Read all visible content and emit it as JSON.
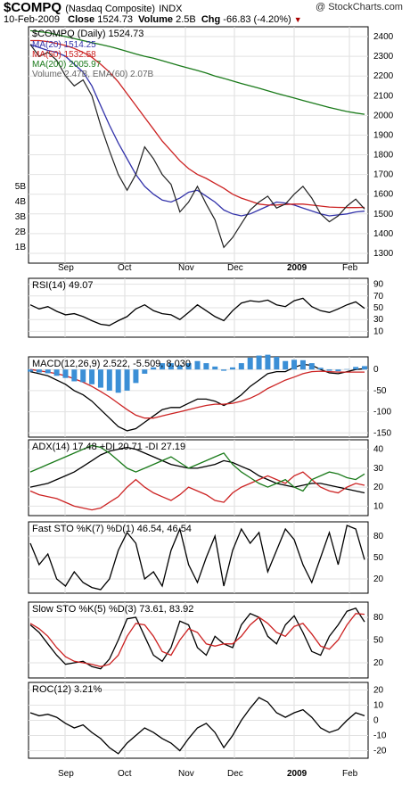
{
  "header": {
    "symbol": "$COMPQ",
    "name": "(Nasdaq Composite)",
    "exchange": "INDX",
    "date": "10-Feb-2009",
    "close_label": "Close",
    "close": "1524.73",
    "volume_label": "Volume",
    "volume": "2.5B",
    "chg_label": "Chg",
    "chg": "-66.83 (-4.20%)",
    "logo": "@ StockCharts.com"
  },
  "chart_data": [
    {
      "type": "line",
      "title": "$COMPQ (Daily) 1524.73",
      "legend": [
        "MA(20) 1514.25",
        "MA(50) 1532.58",
        "MA(200) 2005.97",
        "Volume 2.47B, EMA(60) 2.07B"
      ],
      "x_ticks": [
        "Sep",
        "Oct",
        "Nov",
        "Dec",
        "2009",
        "Feb"
      ],
      "ylim": [
        1250,
        2450
      ],
      "y_ticks": [
        1300,
        1400,
        1500,
        1600,
        1700,
        1800,
        1900,
        2000,
        2100,
        2200,
        2300,
        2400
      ],
      "volume_ticks": [
        "1B",
        "2B",
        "3B",
        "4B",
        "5B"
      ],
      "series": [
        {
          "name": "MA(20)",
          "color": "#3333aa",
          "values": [
            2360,
            2345,
            2330,
            2320,
            2300,
            2260,
            2220,
            2150,
            2050,
            1950,
            1860,
            1780,
            1700,
            1640,
            1600,
            1570,
            1560,
            1580,
            1610,
            1620,
            1590,
            1560,
            1520,
            1500,
            1490,
            1500,
            1520,
            1540,
            1560,
            1555,
            1545,
            1530,
            1515,
            1500,
            1490,
            1495,
            1500,
            1510,
            1514
          ]
        },
        {
          "name": "MA(50)",
          "color": "#cc2222",
          "values": [
            2380,
            2380,
            2375,
            2365,
            2355,
            2340,
            2320,
            2295,
            2260,
            2220,
            2170,
            2110,
            2050,
            1990,
            1930,
            1870,
            1820,
            1770,
            1730,
            1700,
            1680,
            1655,
            1630,
            1600,
            1580,
            1565,
            1550,
            1545,
            1545,
            1548,
            1550,
            1550,
            1545,
            1540,
            1535,
            1533,
            1532,
            1532,
            1533
          ]
        },
        {
          "name": "MA(200)",
          "color": "#1a7a1a",
          "values": [
            2430,
            2425,
            2420,
            2410,
            2400,
            2390,
            2380,
            2370,
            2360,
            2350,
            2338,
            2325,
            2312,
            2300,
            2290,
            2278,
            2265,
            2252,
            2240,
            2228,
            2215,
            2200,
            2188,
            2175,
            2162,
            2150,
            2138,
            2125,
            2112,
            2100,
            2088,
            2076,
            2064,
            2052,
            2040,
            2030,
            2020,
            2012,
            2006
          ]
        },
        {
          "name": "Close",
          "color": "#222222",
          "values": [
            2360,
            2300,
            2320,
            2280,
            2200,
            2150,
            2180,
            2100,
            1950,
            1820,
            1700,
            1620,
            1700,
            1840,
            1780,
            1700,
            1650,
            1510,
            1560,
            1640,
            1550,
            1470,
            1330,
            1380,
            1450,
            1520,
            1560,
            1590,
            1530,
            1550,
            1600,
            1640,
            1580,
            1500,
            1460,
            1490,
            1540,
            1575,
            1525
          ]
        }
      ]
    },
    {
      "type": "line",
      "title": "RSI(14) 49.07",
      "y_ticks": [
        10,
        30,
        50,
        70,
        90
      ],
      "ylim": [
        0,
        100
      ],
      "series": [
        {
          "name": "RSI",
          "values": [
            55,
            48,
            52,
            44,
            38,
            40,
            35,
            28,
            22,
            20,
            28,
            35,
            48,
            55,
            45,
            40,
            38,
            30,
            42,
            55,
            45,
            35,
            28,
            45,
            58,
            62,
            60,
            63,
            55,
            52,
            62,
            66,
            52,
            45,
            42,
            48,
            55,
            60,
            49
          ]
        }
      ]
    },
    {
      "type": "line",
      "title": "MACD(12,26,9) 2.522, -5.509, 8.030",
      "legend": [
        "2.522",
        "-5.509",
        "8.030"
      ],
      "y_ticks": [
        0,
        -50,
        -100,
        -150
      ],
      "ylim": [
        -160,
        30
      ],
      "series": [
        {
          "name": "MACD",
          "values": [
            -5,
            -10,
            -15,
            -25,
            -35,
            -50,
            -60,
            -75,
            -95,
            -115,
            -135,
            -145,
            -140,
            -125,
            -110,
            -95,
            -90,
            -90,
            -80,
            -70,
            -70,
            -75,
            -85,
            -75,
            -60,
            -40,
            -25,
            -10,
            -5,
            -5,
            5,
            12,
            10,
            0,
            -8,
            -10,
            -5,
            0,
            2
          ]
        },
        {
          "name": "Signal",
          "values": [
            0,
            -3,
            -6,
            -10,
            -15,
            -22,
            -30,
            -40,
            -52,
            -65,
            -80,
            -95,
            -108,
            -115,
            -115,
            -110,
            -105,
            -100,
            -95,
            -90,
            -85,
            -82,
            -82,
            -80,
            -75,
            -68,
            -58,
            -45,
            -35,
            -25,
            -18,
            -10,
            -5,
            -4,
            -5,
            -6,
            -6,
            -6,
            -6
          ]
        },
        {
          "name": "Histogram",
          "values": [
            -5,
            -7,
            -9,
            -15,
            -20,
            -28,
            -30,
            -35,
            -43,
            -50,
            -55,
            -50,
            -32,
            -10,
            5,
            15,
            15,
            10,
            15,
            20,
            15,
            7,
            -3,
            5,
            15,
            28,
            33,
            35,
            30,
            20,
            23,
            22,
            15,
            4,
            -3,
            -4,
            1,
            6,
            8
          ]
        }
      ]
    },
    {
      "type": "line",
      "title": "ADX(14) 17.48 +DI 20.71 -DI 27.19",
      "legend": [
        "ADX(14) 17.48",
        "+DI 20.71",
        "-DI 27.19"
      ],
      "y_ticks": [
        10,
        20,
        30,
        40
      ],
      "ylim": [
        5,
        45
      ],
      "series": [
        {
          "name": "ADX",
          "values": [
            20,
            21,
            22,
            24,
            26,
            28,
            31,
            34,
            37,
            39,
            40,
            41,
            40,
            38,
            36,
            34,
            32,
            31,
            30,
            30,
            31,
            32,
            34,
            33,
            31,
            29,
            26,
            24,
            22,
            21,
            20,
            21,
            22,
            22,
            21,
            20,
            19,
            18,
            17
          ]
        },
        {
          "name": "+DI",
          "values": [
            18,
            16,
            15,
            14,
            12,
            10,
            9,
            8,
            9,
            12,
            15,
            20,
            24,
            20,
            17,
            15,
            13,
            16,
            20,
            18,
            16,
            13,
            12,
            17,
            20,
            22,
            24,
            26,
            24,
            22,
            26,
            28,
            24,
            20,
            18,
            17,
            20,
            22,
            21
          ]
        },
        {
          "name": "-DI",
          "values": [
            28,
            30,
            32,
            34,
            36,
            38,
            40,
            42,
            41,
            38,
            34,
            30,
            28,
            30,
            32,
            34,
            36,
            33,
            30,
            32,
            34,
            36,
            38,
            32,
            28,
            25,
            22,
            20,
            22,
            24,
            20,
            18,
            24,
            26,
            28,
            27,
            25,
            24,
            27
          ]
        }
      ]
    },
    {
      "type": "line",
      "title": "Fast STO %K(7) %D(1) 46.54, 46.54",
      "legend": [
        "46.54",
        "46.54"
      ],
      "y_ticks": [
        20,
        50,
        80
      ],
      "ylim": [
        0,
        100
      ],
      "series": [
        {
          "name": "%K",
          "values": [
            70,
            40,
            55,
            20,
            10,
            30,
            15,
            8,
            5,
            20,
            60,
            85,
            70,
            20,
            30,
            10,
            60,
            90,
            40,
            15,
            50,
            80,
            10,
            60,
            90,
            70,
            85,
            30,
            60,
            90,
            75,
            40,
            15,
            50,
            85,
            40,
            95,
            90,
            47
          ]
        }
      ]
    },
    {
      "type": "line",
      "title": "Slow STO %K(5) %D(3) 73.61, 83.92",
      "legend": [
        "73.61",
        "83.92"
      ],
      "y_ticks": [
        20,
        50,
        80
      ],
      "ylim": [
        0,
        100
      ],
      "series": [
        {
          "name": "%K",
          "values": [
            70,
            60,
            45,
            30,
            18,
            20,
            22,
            15,
            12,
            25,
            50,
            78,
            80,
            55,
            30,
            22,
            40,
            75,
            70,
            40,
            30,
            55,
            45,
            40,
            70,
            85,
            80,
            55,
            45,
            70,
            82,
            60,
            35,
            30,
            55,
            70,
            88,
            92,
            74
          ]
        },
        {
          "name": "%D",
          "values": [
            72,
            65,
            55,
            40,
            28,
            22,
            20,
            18,
            15,
            18,
            30,
            55,
            72,
            70,
            55,
            35,
            30,
            50,
            65,
            60,
            45,
            42,
            45,
            45,
            55,
            70,
            80,
            72,
            60,
            55,
            68,
            72,
            58,
            42,
            38,
            50,
            70,
            85,
            84
          ]
        }
      ]
    },
    {
      "type": "line",
      "title": "ROC(12) 3.21%",
      "y_ticks": [
        -20,
        -10,
        0,
        10,
        20
      ],
      "ylim": [
        -25,
        25
      ],
      "series": [
        {
          "name": "ROC",
          "values": [
            5,
            3,
            4,
            2,
            -2,
            -5,
            -3,
            -8,
            -12,
            -18,
            -22,
            -15,
            -10,
            -5,
            -8,
            -12,
            -15,
            -20,
            -12,
            -5,
            -2,
            -8,
            -18,
            -10,
            0,
            8,
            15,
            12,
            5,
            2,
            5,
            7,
            2,
            -5,
            -8,
            -6,
            0,
            5,
            3
          ]
        }
      ]
    }
  ]
}
